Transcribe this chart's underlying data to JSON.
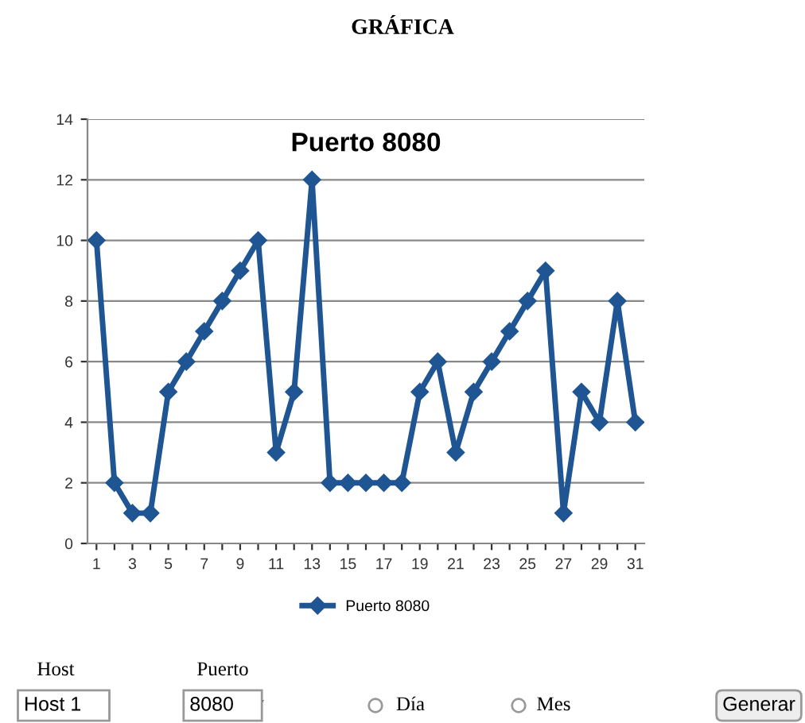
{
  "chart_data": {
    "type": "line",
    "title": "GRÁFICA",
    "subtitle": "Puerto 8080",
    "categories": [
      "1",
      null,
      "3",
      null,
      "5",
      null,
      "7",
      null,
      "9",
      null,
      "11",
      null,
      "13",
      null,
      "15",
      null,
      "17",
      null,
      "19",
      null,
      "21",
      null,
      "23",
      null,
      "25",
      null,
      "27",
      null,
      "29",
      null,
      "31"
    ],
    "series": [
      {
        "name": "Puerto 8080",
        "color": "#1f5592",
        "values": [
          10,
          2,
          1,
          1,
          5,
          6,
          7,
          8,
          9,
          10,
          3,
          5,
          12,
          2,
          2,
          2,
          2,
          2,
          5,
          6,
          3,
          5,
          6,
          7,
          8,
          9,
          1,
          5,
          4,
          8,
          4
        ]
      }
    ],
    "ylim": [
      0,
      14
    ],
    "yticks": [
      0,
      2,
      4,
      6,
      8,
      10,
      12,
      14
    ],
    "grid": "y",
    "legend": "bottom",
    "marker": "diamond",
    "line_style": "solid",
    "annotations": [
      "Host",
      "Puerto",
      "Host 1",
      "8080",
      "Día",
      "Mes",
      "Generar"
    ]
  }
}
